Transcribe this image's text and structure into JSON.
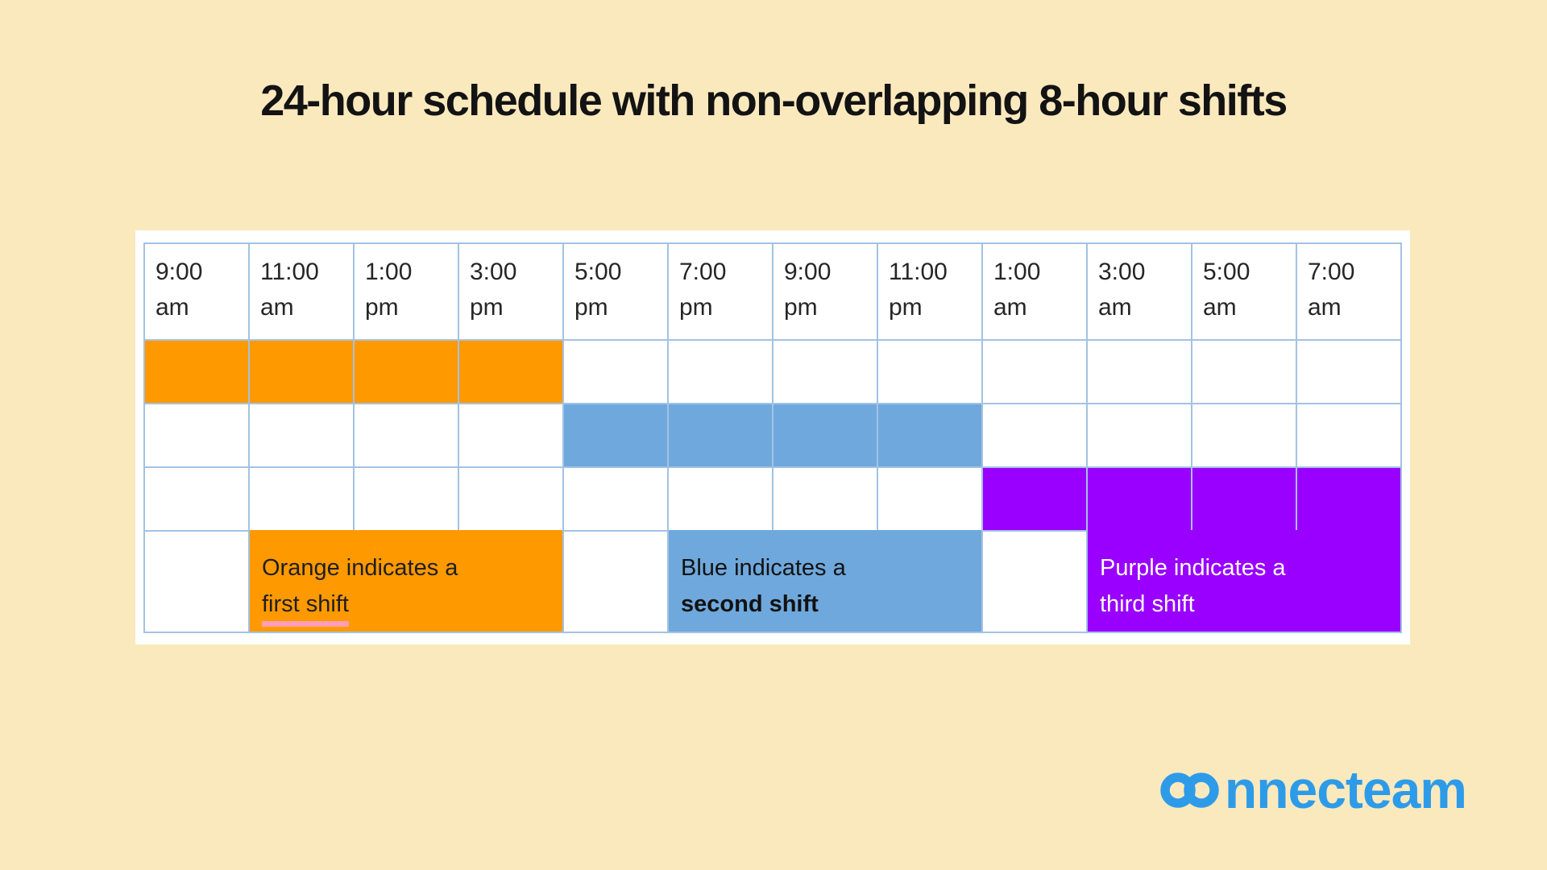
{
  "title": "24-hour schedule with non-overlapping 8-hour shifts",
  "logo": {
    "brand": "connecteam"
  },
  "colors": {
    "background": "#FBE9BE",
    "card": "#FFFFFF",
    "grid_line": "#A3C2E4",
    "orange": "#FF9900",
    "blue": "#6FA8DC",
    "purple": "#9900FF",
    "pink_underline": "#FF9EB4",
    "logo_blue": "#2D9BE8",
    "header_text": "#262626"
  },
  "schedule": {
    "time_headers": [
      {
        "time": "9:00",
        "period": "am"
      },
      {
        "time": "11:00",
        "period": "am"
      },
      {
        "time": "1:00",
        "period": "pm"
      },
      {
        "time": "3:00",
        "period": "pm"
      },
      {
        "time": "5:00",
        "period": "pm"
      },
      {
        "time": "7:00",
        "period": "pm"
      },
      {
        "time": "9:00",
        "period": "pm"
      },
      {
        "time": "11:00",
        "period": "pm"
      },
      {
        "time": "1:00",
        "period": "am"
      },
      {
        "time": "3:00",
        "period": "am"
      },
      {
        "time": "5:00",
        "period": "am"
      },
      {
        "time": "7:00",
        "period": "am"
      }
    ],
    "shift_rows": [
      {
        "shift": "first shift",
        "color": "orange",
        "start_col": 1,
        "end_col": 4
      },
      {
        "shift": "second shift",
        "color": "blue",
        "start_col": 5,
        "end_col": 8
      },
      {
        "shift": "third shift",
        "color": "purple",
        "start_col": 9,
        "end_col": 12
      }
    ],
    "legend_row": [
      {
        "intro": "Orange indicates a",
        "shift_label": "first shift",
        "color": "orange",
        "label_style": "pink-underline",
        "text_color": "#1f1f1f",
        "start_col": 2,
        "end_col": 4
      },
      {
        "intro": "Blue indicates a",
        "shift_label": "second shift",
        "color": "blue",
        "label_style": "bold",
        "text_color": "#121212",
        "start_col": 6,
        "end_col": 8
      },
      {
        "intro": "Purple indicates a",
        "shift_label": "third shift",
        "color": "purple",
        "label_style": "plain",
        "text_color": "#FFFFFF",
        "start_col": 10,
        "end_col": 12
      }
    ]
  },
  "chart_data": {
    "type": "table",
    "title": "24-hour schedule with non-overlapping 8-hour shifts",
    "categories": [
      "9:00 am",
      "11:00 am",
      "1:00 pm",
      "3:00 pm",
      "5:00 pm",
      "7:00 pm",
      "9:00 pm",
      "11:00 pm",
      "1:00 am",
      "3:00 am",
      "5:00 am",
      "7:00 am"
    ],
    "series": [
      {
        "name": "first shift",
        "color": "#FF9900",
        "start": "9:00 am",
        "end": "5:00 pm",
        "filled_columns": [
          1,
          2,
          3,
          4
        ]
      },
      {
        "name": "second shift",
        "color": "#6FA8DC",
        "start": "5:00 pm",
        "end": "1:00 am",
        "filled_columns": [
          5,
          6,
          7,
          8
        ]
      },
      {
        "name": "third shift",
        "color": "#9900FF",
        "start": "1:00 am",
        "end": "9:00 am",
        "filled_columns": [
          9,
          10,
          11,
          12
        ]
      }
    ],
    "legend_position": "bottom row of table",
    "grid": true
  }
}
